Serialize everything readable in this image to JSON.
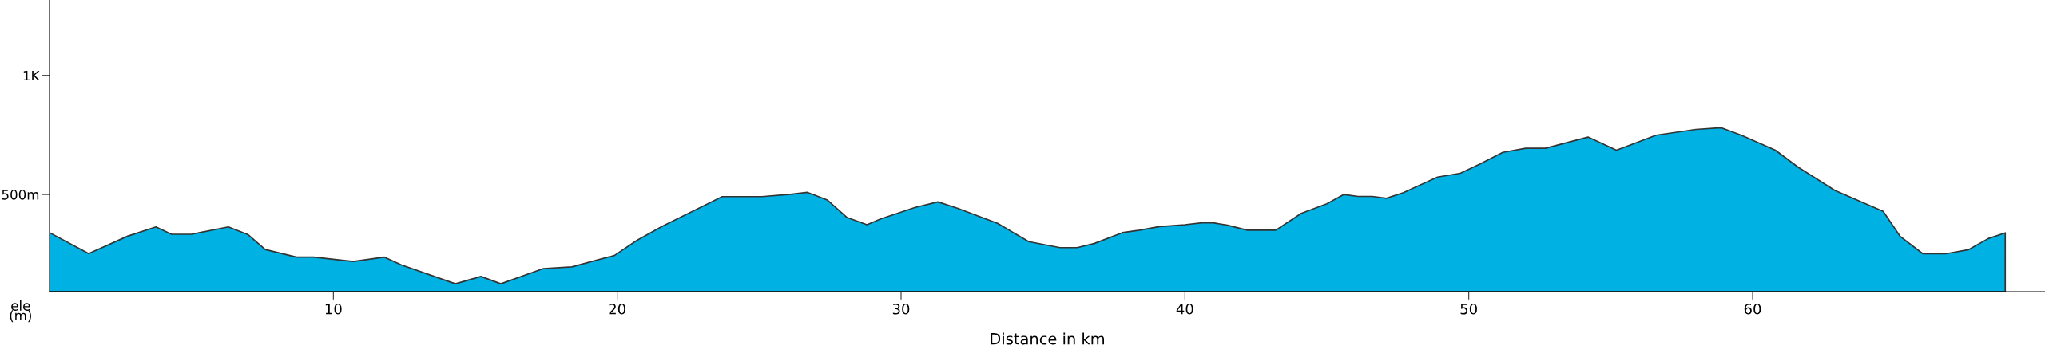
{
  "chart_data": {
    "type": "area",
    "xlabel": "Distance in km",
    "ylabel": "ele\n(m)",
    "xlim": [
      0,
      70.3
    ],
    "xticks": [
      10,
      20,
      30,
      40,
      50,
      60
    ],
    "ylim": [
      92,
      1317
    ],
    "yticks": [
      {
        "value": 500,
        "label": "500m"
      },
      {
        "value": 1000,
        "label": "1K"
      }
    ],
    "grid": false,
    "legend": false,
    "series": [
      {
        "color": "#00b2e3",
        "x": [
          0,
          1.38,
          2.75,
          3.75,
          4.3,
          5.0,
          6.3,
          7.0,
          7.6,
          8.7,
          9.3,
          10.7,
          11.8,
          12.4,
          14.3,
          15.2,
          15.9,
          17.4,
          18.4,
          19.9,
          20.7,
          21.6,
          23.7,
          25.1,
          26.1,
          26.7,
          27.4,
          28.1,
          28.8,
          29.3,
          30.5,
          31.3,
          32.0,
          32.8,
          33.4,
          34.5,
          35.6,
          36.2,
          36.8,
          37.8,
          38.4,
          39.1,
          40.0,
          40.6,
          41.0,
          41.5,
          42.2,
          43.2,
          44.1,
          45.0,
          45.6,
          46.1,
          46.6,
          47.1,
          47.7,
          48.9,
          49.7,
          50.4,
          51.2,
          52.0,
          52.7,
          54.2,
          55.2,
          56.6,
          58.0,
          58.9,
          59.6,
          60.8,
          61.6,
          62.9,
          64.6,
          65.2,
          66.0,
          66.8,
          67.6,
          68.3,
          68.9
        ],
        "values": [
          340,
          252,
          325,
          364,
          333,
          333,
          364,
          331,
          269,
          237,
          237,
          219,
          237,
          204,
          125,
          156,
          125,
          189,
          196,
          244,
          308,
          367,
          491,
          491,
          501,
          509,
          477,
          403,
          373,
          398,
          446,
          469,
          442,
          406,
          379,
          302,
          277,
          277,
          294,
          340,
          350,
          365,
          373,
          381,
          381,
          371,
          350,
          350,
          421,
          461,
          500,
          492,
          492,
          484,
          508,
          573,
          589,
          628,
          677,
          694,
          694,
          741,
          686,
          749,
          773,
          780,
          749,
          686,
          615,
          517,
          429,
          324,
          251,
          251,
          268,
          315,
          339
        ]
      }
    ]
  }
}
